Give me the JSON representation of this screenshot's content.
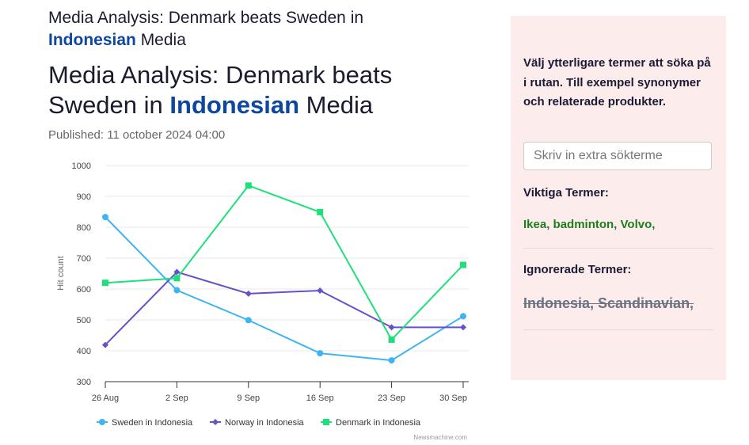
{
  "header": {
    "small_title_pre": "Media Analysis: Denmark beats Sweden in ",
    "small_title_hl": "Indonesian",
    "small_title_post": " Media",
    "title_pre": "Media Analysis: Denmark beats Sweden in ",
    "title_hl": "Indonesian",
    "title_post": " Media",
    "published": "Published: 11 october 2024 04:00"
  },
  "sidebar": {
    "intro": "Välj ytterligare termer att söka på i rutan. Till exempel synonymer och relaterade produkter.",
    "input_placeholder": "Skriv in extra sökterme",
    "important_label": "Viktiga Termer:",
    "important_terms": "Ikea, badminton, Volvo,",
    "ignored_label": "Ignorerade Termer:",
    "ignored_terms": "Indonesia, Scandinavian,"
  },
  "chart_data": {
    "type": "line",
    "ylabel": "Hit count",
    "ylim": [
      300,
      1000
    ],
    "yticks": [
      1000,
      900,
      800,
      700,
      600,
      500,
      400,
      300
    ],
    "categories": [
      "26 Aug",
      "2 Sep",
      "9 Sep",
      "16 Sep",
      "23 Sep",
      "30 Sep"
    ],
    "series": [
      {
        "name": "Sweden in Indonesia",
        "color": "#3fb4f0",
        "marker": "circle",
        "values": [
          833,
          596,
          499,
          392,
          369,
          512
        ]
      },
      {
        "name": "Norway in Indonesia",
        "color": "#6a4fc9",
        "marker": "diamond",
        "values": [
          419,
          655,
          585,
          595,
          476,
          476
        ]
      },
      {
        "name": "Denmark in Indonesia",
        "color": "#1ee07a",
        "marker": "square",
        "values": [
          620,
          635,
          935,
          849,
          436,
          678
        ]
      }
    ],
    "credit": "Newsmachine.com",
    "legend": "bottom",
    "grid": true
  }
}
